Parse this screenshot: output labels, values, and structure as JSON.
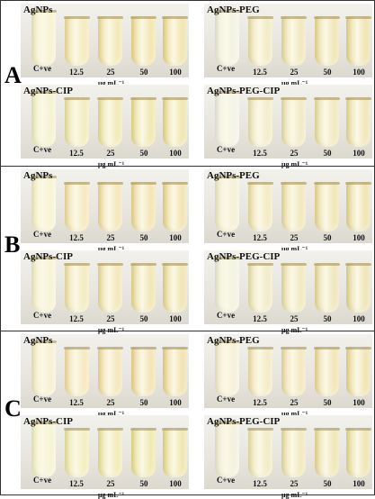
{
  "figure": {
    "sections": [
      {
        "letter": "A",
        "panels": [
          {
            "title": "AgNPs",
            "colors": [
              "#f3f0c6",
              "#f0e2a4",
              "#efdf9c",
              "#eedb94",
              "#ecd98c"
            ]
          },
          {
            "title": "AgNPs-PEG",
            "colors": [
              "#eef0e4",
              "#ede3b4",
              "#ecdfa6",
              "#eadb9c",
              "#e8d894"
            ]
          },
          {
            "title": "AgNPs-CIP",
            "colors": [
              "#f0f0c4",
              "#ede6a8",
              "#ece29c",
              "#ebde94",
              "#eadc8e"
            ]
          },
          {
            "title": "AgNPs-PEG-CIP",
            "colors": [
              "#eef0e8",
              "#ede6bc",
              "#ece2b2",
              "#ebe0aa",
              "#eadca0"
            ]
          }
        ]
      },
      {
        "letter": "B",
        "panels": [
          {
            "title": "AgNPs",
            "colors": [
              "#f5f2c8",
              "#f2e0a8",
              "#f0dca0",
              "#eeda98",
              "#ecd892"
            ]
          },
          {
            "title": "AgNPs-PEG",
            "colors": [
              "#f0eecc",
              "#eee2ae",
              "#ecdea4",
              "#eadb9c",
              "#e8d896"
            ]
          },
          {
            "title": "AgNPs-CIP",
            "colors": [
              "#f3f1cc",
              "#efe3ac",
              "#eddfa2",
              "#ebdc9a",
              "#e9d994"
            ]
          },
          {
            "title": "AgNPs-PEG-CIP",
            "colors": [
              "#eef0dc",
              "#ece4b8",
              "#eae0ac",
              "#e8dca4",
              "#e6d99c"
            ]
          }
        ]
      },
      {
        "letter": "C",
        "panels": [
          {
            "title": "AgNPs",
            "colors": [
              "#f5ecc8",
              "#f3dfa8",
              "#f1dca0",
              "#efd898",
              "#edd590"
            ]
          },
          {
            "title": "AgNPs-PEG",
            "colors": [
              "#f4eed2",
              "#f1e2b4",
              "#efdea8",
              "#edda9e",
              "#ebd794"
            ]
          },
          {
            "title": "AgNPs-CIP",
            "colors": [
              "#f2f2c8",
              "#eee8a8",
              "#ede49c",
              "#ebe094",
              "#e9dd8e"
            ]
          },
          {
            "title": "AgNPs-PEG-CIP",
            "colors": [
              "#efeed8",
              "#ede4b4",
              "#ebe0a8",
              "#e9dd9e",
              "#e7da96"
            ]
          }
        ]
      }
    ],
    "tube_labels": [
      "C+ve",
      "12.5",
      "25",
      "50",
      "100"
    ],
    "unit_label": "μg mL⁻¹"
  }
}
